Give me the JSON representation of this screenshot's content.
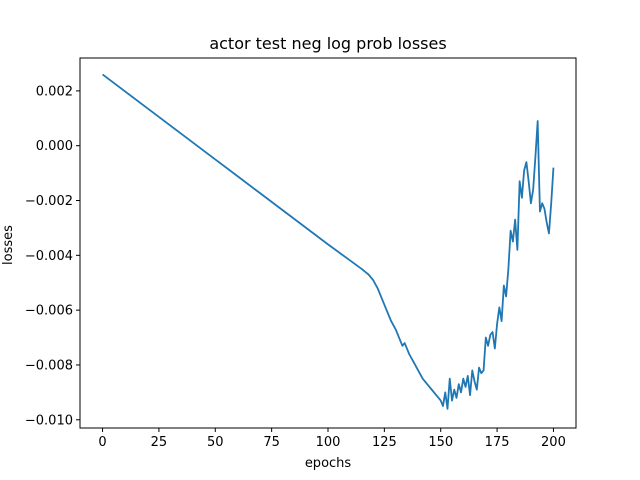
{
  "chart_data": {
    "type": "line",
    "title": "actor test neg log prob losses",
    "xlabel": "epochs",
    "ylabel": "losses",
    "xlim": [
      -10,
      210
    ],
    "ylim": [
      -0.0103,
      0.0032
    ],
    "xticks": [
      0,
      25,
      50,
      75,
      100,
      125,
      150,
      175,
      200
    ],
    "yticks": [
      -0.01,
      -0.008,
      -0.006,
      -0.004,
      -0.002,
      0.0,
      0.002
    ],
    "ytick_labels": [
      "−0.010",
      "−0.008",
      "−0.006",
      "−0.004",
      "−0.002",
      "0.000",
      "0.002"
    ],
    "xtick_labels": [
      "0",
      "25",
      "50",
      "75",
      "100",
      "125",
      "150",
      "175",
      "200"
    ],
    "grid": false,
    "series": [
      {
        "color": "#1f77b4",
        "x": [
          0,
          10,
          20,
          30,
          40,
          50,
          60,
          70,
          80,
          90,
          100,
          110,
          115,
          118,
          120,
          122,
          125,
          128,
          130,
          131,
          132,
          133,
          134,
          136,
          138,
          140,
          142,
          144,
          146,
          148,
          150,
          151,
          152,
          153,
          154,
          155,
          156,
          157,
          158,
          159,
          160,
          161,
          162,
          163,
          164,
          165,
          166,
          167,
          168,
          169,
          170,
          171,
          172,
          173,
          174,
          175,
          176,
          177,
          178,
          179,
          180,
          181,
          182,
          183,
          184,
          185,
          186,
          187,
          188,
          189,
          190,
          191,
          192,
          193,
          194,
          195,
          196,
          197,
          198,
          199,
          200
        ],
        "y": [
          0.0026,
          0.00198,
          0.00136,
          0.00074,
          0.00012,
          -0.0005,
          -0.00112,
          -0.00174,
          -0.00236,
          -0.00298,
          -0.0036,
          -0.0042,
          -0.0045,
          -0.0047,
          -0.0049,
          -0.0052,
          -0.0058,
          -0.0064,
          -0.0067,
          -0.0069,
          -0.0071,
          -0.0073,
          -0.0072,
          -0.0076,
          -0.0079,
          -0.0082,
          -0.0085,
          -0.0087,
          -0.0089,
          -0.0091,
          -0.0093,
          -0.0095,
          -0.009,
          -0.0096,
          -0.0085,
          -0.0093,
          -0.0089,
          -0.0092,
          -0.0087,
          -0.009,
          -0.0085,
          -0.0088,
          -0.0084,
          -0.0091,
          -0.0082,
          -0.0086,
          -0.0089,
          -0.0081,
          -0.0083,
          -0.0082,
          -0.007,
          -0.0073,
          -0.0069,
          -0.0068,
          -0.0074,
          -0.0065,
          -0.0059,
          -0.0064,
          -0.0051,
          -0.0055,
          -0.0045,
          -0.0031,
          -0.0035,
          -0.0027,
          -0.0038,
          -0.0013,
          -0.0019,
          -0.0009,
          -0.0006,
          -0.0013,
          -0.0021,
          -0.0016,
          -0.0004,
          0.0009,
          -0.0024,
          -0.0021,
          -0.0023,
          -0.0028,
          -0.0032,
          -0.0021,
          -0.0008
        ]
      }
    ]
  }
}
